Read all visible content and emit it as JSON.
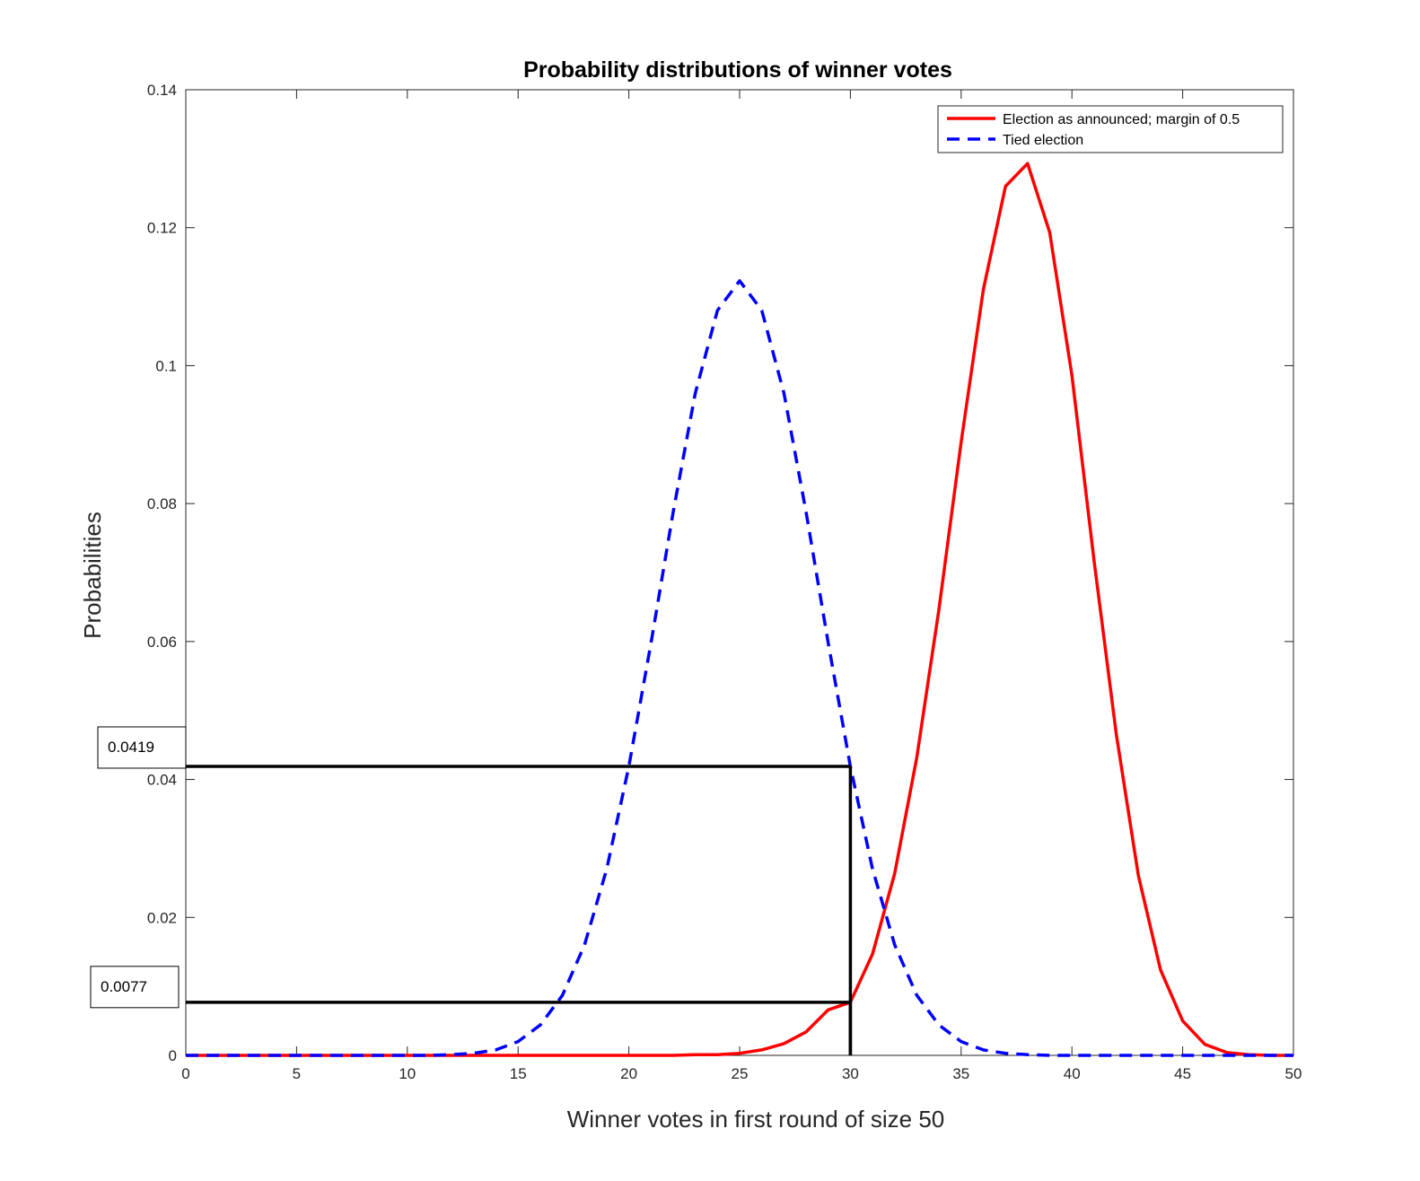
{
  "chart_data": {
    "type": "line",
    "title": "Probability distributions of winner votes",
    "xlabel": "Winner votes in first round of size 50",
    "ylabel": "Probabilities",
    "xlim": [
      0,
      50
    ],
    "ylim": [
      0,
      0.14
    ],
    "xticks": [
      "0",
      "5",
      "10",
      "15",
      "20",
      "25",
      "30",
      "35",
      "40",
      "45",
      "50"
    ],
    "yticks": [
      "0",
      "0.02",
      "0.04",
      "0.06",
      "0.08",
      "0.1",
      "0.12",
      "0.14"
    ],
    "grid": false,
    "legend_position": "top-right",
    "series": [
      {
        "name": "Election as announced; margin of 0.5",
        "color": "#ff0000",
        "style": "solid",
        "x": [
          0,
          1,
          2,
          3,
          4,
          5,
          6,
          7,
          8,
          9,
          10,
          11,
          12,
          13,
          14,
          15,
          16,
          17,
          18,
          19,
          20,
          21,
          22,
          23,
          24,
          25,
          26,
          27,
          28,
          29,
          30,
          31,
          32,
          33,
          34,
          35,
          36,
          37,
          38,
          39,
          40,
          41,
          42,
          43,
          44,
          45,
          46,
          47,
          48,
          49,
          50
        ],
        "y": [
          0,
          0,
          0,
          0,
          0,
          0,
          0,
          0,
          0,
          0,
          0,
          0,
          0,
          0,
          0,
          0,
          0,
          0,
          0,
          0,
          0,
          0,
          0,
          0.0001,
          0.0001,
          0.0003,
          0.0008,
          0.0017,
          0.0034,
          0.0066,
          0.0077,
          0.0147,
          0.0264,
          0.0432,
          0.0647,
          0.0889,
          0.111,
          0.126,
          0.1293,
          0.1193,
          0.0986,
          0.0717,
          0.0466,
          0.0261,
          0.0124,
          0.005,
          0.0016,
          0.0004,
          0.0001,
          0,
          0
        ]
      },
      {
        "name": "Tied election",
        "color": "#0000ff",
        "style": "dashed",
        "x": [
          0,
          1,
          2,
          3,
          4,
          5,
          6,
          7,
          8,
          9,
          10,
          11,
          12,
          13,
          14,
          15,
          16,
          17,
          18,
          19,
          20,
          21,
          22,
          23,
          24,
          25,
          26,
          27,
          28,
          29,
          30,
          31,
          32,
          33,
          34,
          35,
          36,
          37,
          38,
          39,
          40,
          41,
          42,
          43,
          44,
          45,
          46,
          47,
          48,
          49,
          50
        ],
        "y": [
          0,
          0,
          0,
          0,
          0,
          0,
          0,
          0,
          0,
          0,
          0,
          0,
          0.0001,
          0.0003,
          0.0008,
          0.002,
          0.0044,
          0.0087,
          0.016,
          0.027,
          0.0419,
          0.0598,
          0.0788,
          0.096,
          0.108,
          0.1123,
          0.108,
          0.096,
          0.0788,
          0.0598,
          0.0419,
          0.027,
          0.016,
          0.0087,
          0.0044,
          0.002,
          0.0008,
          0.0003,
          0.0001,
          0,
          0,
          0,
          0,
          0,
          0,
          0,
          0,
          0,
          0,
          0,
          0
        ]
      }
    ],
    "annotations": [
      {
        "label": "0.0419",
        "x": 30,
        "y": 0.0419
      },
      {
        "label": "0.0077",
        "x": 30,
        "y": 0.0077
      }
    ]
  }
}
